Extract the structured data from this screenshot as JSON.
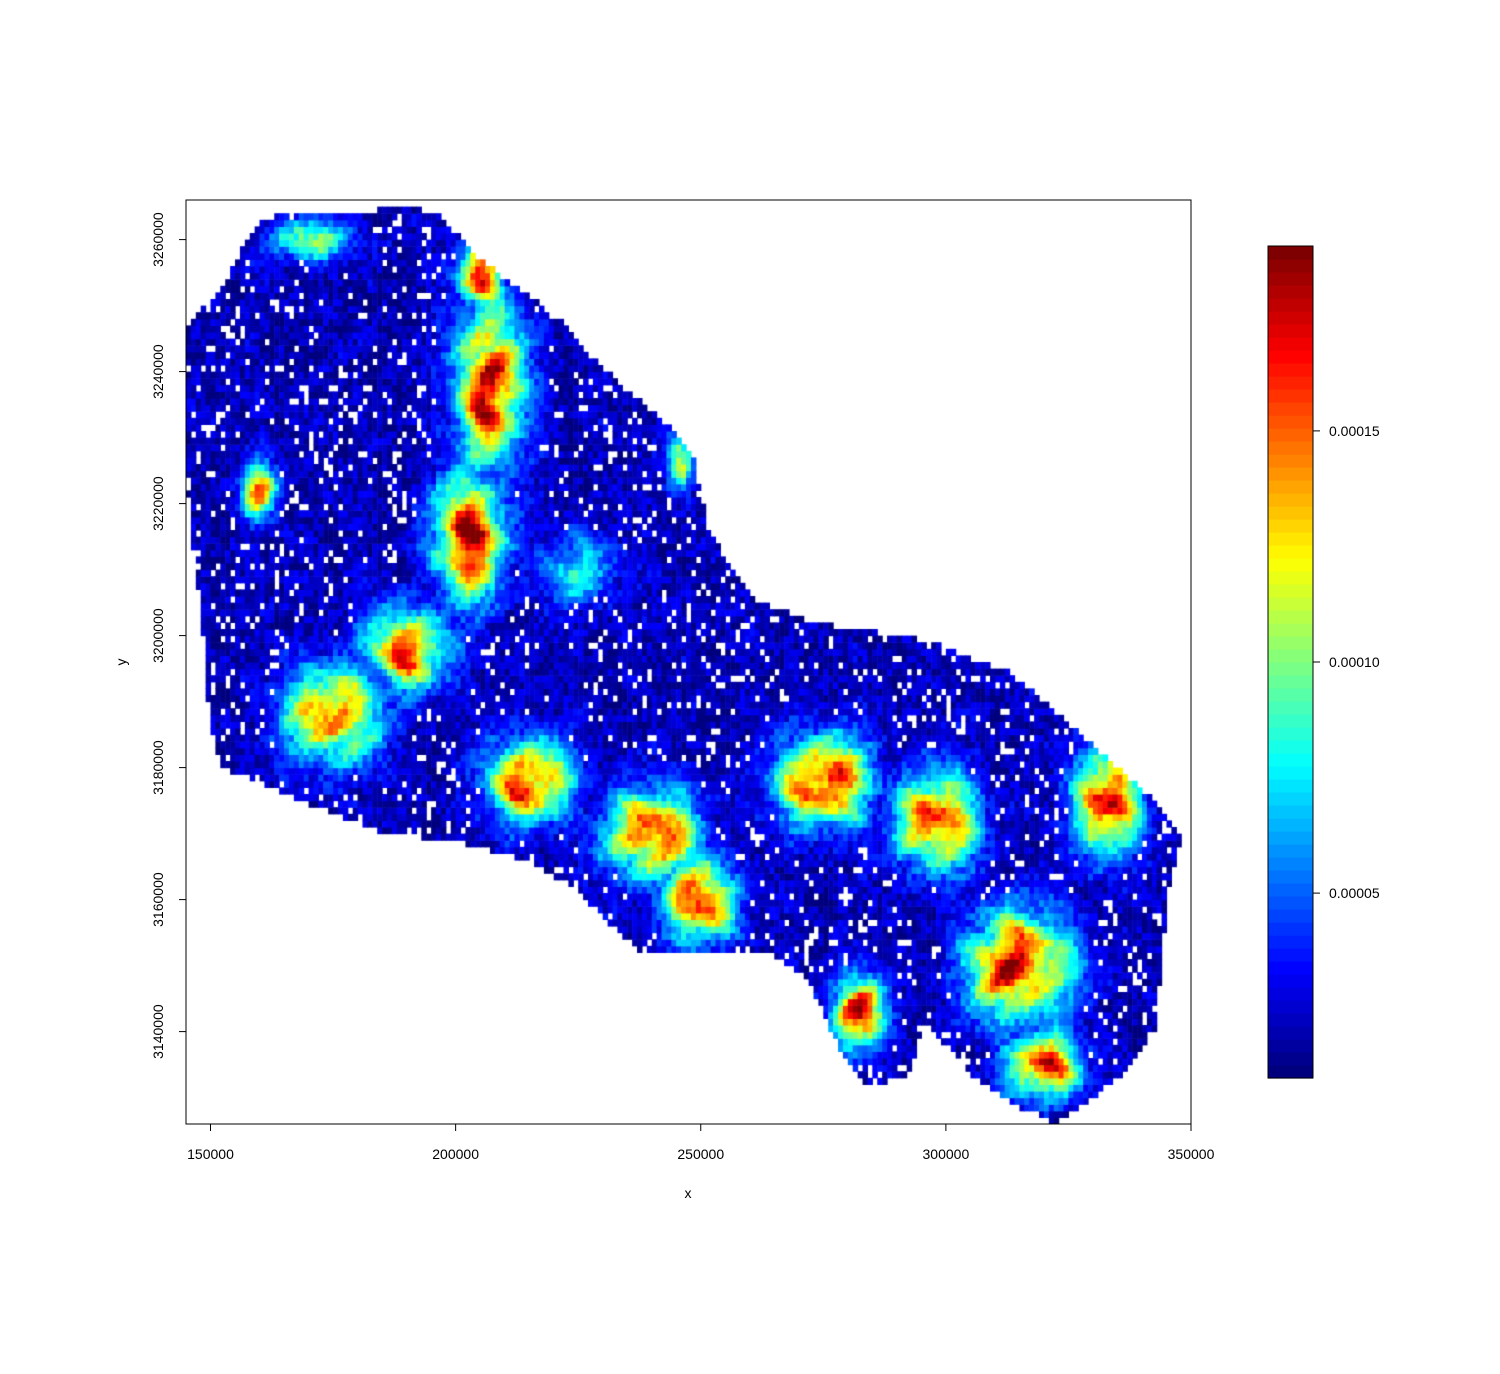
{
  "chart_data": {
    "type": "heatmap",
    "title": "",
    "xlabel": "x",
    "ylabel": "y",
    "xlim": [
      145000,
      350000
    ],
    "ylim": [
      3126000,
      3266000
    ],
    "x_ticks": [
      150000,
      200000,
      250000,
      300000,
      350000
    ],
    "x_tick_labels": [
      "150000",
      "200000",
      "250000",
      "300000",
      "350000"
    ],
    "y_ticks": [
      3140000,
      3160000,
      3180000,
      3200000,
      3220000,
      3240000,
      3260000
    ],
    "y_tick_labels": [
      "3140000",
      "3160000",
      "3180000",
      "3200000",
      "3220000",
      "3240000",
      "3260000"
    ],
    "grid": false,
    "legend": "right",
    "colorbar": {
      "range": [
        1e-05,
        0.00019
      ],
      "ticks": [
        5e-05,
        0.0001,
        0.00015
      ],
      "tick_labels": [
        "0.00005",
        "0.00010",
        "0.00015"
      ],
      "palette": [
        "#00007f",
        "#0000ff",
        "#007fff",
        "#00ffff",
        "#7fff7f",
        "#ffff00",
        "#ff7f00",
        "#ff0000",
        "#7f0000"
      ]
    },
    "raster_outline": [
      [
        145000,
        3247000
      ],
      [
        152000,
        3252000
      ],
      [
        156000,
        3258000
      ],
      [
        160000,
        3263000
      ],
      [
        166000,
        3264000
      ],
      [
        178000,
        3264000
      ],
      [
        190000,
        3265000
      ],
      [
        196000,
        3264000
      ],
      [
        200000,
        3261000
      ],
      [
        205000,
        3257000
      ],
      [
        212000,
        3253000
      ],
      [
        222000,
        3248000
      ],
      [
        228000,
        3242000
      ],
      [
        234000,
        3238000
      ],
      [
        240000,
        3234000
      ],
      [
        246000,
        3230000
      ],
      [
        249000,
        3226000
      ],
      [
        250000,
        3221000
      ],
      [
        252000,
        3216000
      ],
      [
        256000,
        3210000
      ],
      [
        262000,
        3205000
      ],
      [
        270000,
        3203000
      ],
      [
        280000,
        3201000
      ],
      [
        292000,
        3200000
      ],
      [
        302000,
        3198000
      ],
      [
        312000,
        3195000
      ],
      [
        320000,
        3190000
      ],
      [
        326000,
        3186000
      ],
      [
        332000,
        3182000
      ],
      [
        338000,
        3178000
      ],
      [
        344000,
        3174000
      ],
      [
        348000,
        3170000
      ],
      [
        345000,
        3160000
      ],
      [
        344000,
        3150000
      ],
      [
        343000,
        3140000
      ],
      [
        338000,
        3135000
      ],
      [
        330000,
        3130000
      ],
      [
        322000,
        3126000
      ],
      [
        314000,
        3129000
      ],
      [
        306000,
        3133000
      ],
      [
        300000,
        3138000
      ],
      [
        296000,
        3142000
      ],
      [
        292000,
        3133000
      ],
      [
        284000,
        3132000
      ],
      [
        278000,
        3138000
      ],
      [
        272000,
        3148000
      ],
      [
        264000,
        3152000
      ],
      [
        254000,
        3152000
      ],
      [
        246000,
        3152000
      ],
      [
        238000,
        3152000
      ],
      [
        232000,
        3156000
      ],
      [
        224000,
        3162000
      ],
      [
        214000,
        3166000
      ],
      [
        200000,
        3169000
      ],
      [
        186000,
        3170000
      ],
      [
        172000,
        3174000
      ],
      [
        160000,
        3178000
      ],
      [
        152000,
        3180000
      ],
      [
        150000,
        3185000
      ],
      [
        149000,
        3195000
      ],
      [
        148000,
        3205000
      ],
      [
        146000,
        3215000
      ],
      [
        145000,
        3228000
      ],
      [
        145000,
        3240000
      ]
    ],
    "hotspots": [
      {
        "x": 207000,
        "y": 3238000,
        "value": 0.000185,
        "sx": 6500,
        "sy": 12000
      },
      {
        "x": 205000,
        "y": 3255000,
        "value": 0.00017,
        "sx": 4500,
        "sy": 5000
      },
      {
        "x": 203000,
        "y": 3215000,
        "value": 0.00018,
        "sx": 7000,
        "sy": 9000
      },
      {
        "x": 190000,
        "y": 3198000,
        "value": 0.00016,
        "sx": 8000,
        "sy": 6000
      },
      {
        "x": 175000,
        "y": 3188000,
        "value": 0.00016,
        "sx": 9000,
        "sy": 7000
      },
      {
        "x": 160000,
        "y": 3222000,
        "value": 0.00014,
        "sx": 3500,
        "sy": 4000
      },
      {
        "x": 215000,
        "y": 3178000,
        "value": 0.000175,
        "sx": 8000,
        "sy": 6000
      },
      {
        "x": 240000,
        "y": 3170000,
        "value": 0.00017,
        "sx": 9000,
        "sy": 6500
      },
      {
        "x": 250000,
        "y": 3160000,
        "value": 0.00017,
        "sx": 7000,
        "sy": 6000
      },
      {
        "x": 275000,
        "y": 3178000,
        "value": 0.00018,
        "sx": 9000,
        "sy": 6500
      },
      {
        "x": 282000,
        "y": 3143000,
        "value": 0.00018,
        "sx": 5000,
        "sy": 5500
      },
      {
        "x": 298000,
        "y": 3172000,
        "value": 0.00017,
        "sx": 8000,
        "sy": 7000
      },
      {
        "x": 315000,
        "y": 3150000,
        "value": 0.00018,
        "sx": 10000,
        "sy": 8000
      },
      {
        "x": 333000,
        "y": 3175000,
        "value": 0.000185,
        "sx": 6000,
        "sy": 8000
      },
      {
        "x": 320000,
        "y": 3135000,
        "value": 0.00017,
        "sx": 7000,
        "sy": 5000
      },
      {
        "x": 246000,
        "y": 3227000,
        "value": 0.00013,
        "sx": 2500,
        "sy": 5000
      },
      {
        "x": 170000,
        "y": 3260000,
        "value": 0.0001,
        "sx": 9000,
        "sy": 3000
      },
      {
        "x": 225000,
        "y": 3210000,
        "value": 8e-05,
        "sx": 8000,
        "sy": 5000
      }
    ],
    "background_value": 2e-05
  }
}
